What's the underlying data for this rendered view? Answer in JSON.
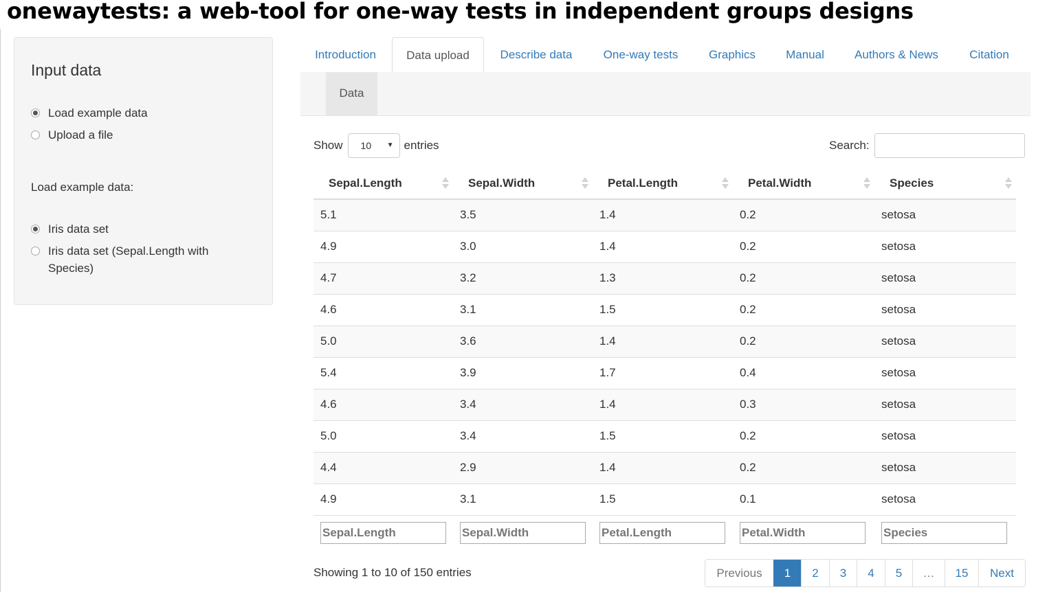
{
  "app": {
    "title": "onewaytests: a web-tool for one-way tests in independent groups designs"
  },
  "sidebar": {
    "heading": "Input data",
    "source_options": [
      {
        "label": "Load example data",
        "checked": true
      },
      {
        "label": "Upload a file",
        "checked": false
      }
    ],
    "example_label": "Load example data:",
    "example_options": [
      {
        "label": "Iris data set",
        "checked": true
      },
      {
        "label": "Iris data set (Sepal.Length with Species)",
        "checked": false
      }
    ]
  },
  "tabs": [
    {
      "label": "Introduction",
      "active": false
    },
    {
      "label": "Data upload",
      "active": true
    },
    {
      "label": "Describe data",
      "active": false
    },
    {
      "label": "One-way tests",
      "active": false
    },
    {
      "label": "Graphics",
      "active": false
    },
    {
      "label": "Manual",
      "active": false
    },
    {
      "label": "Authors & News",
      "active": false
    },
    {
      "label": "Citation",
      "active": false
    }
  ],
  "subtab": {
    "label": "Data"
  },
  "length_control": {
    "show_label": "Show",
    "selected": "10",
    "entries_label": "entries"
  },
  "search": {
    "label": "Search:",
    "value": ""
  },
  "table": {
    "columns": [
      "Sepal.Length",
      "Sepal.Width",
      "Petal.Length",
      "Petal.Width",
      "Species"
    ],
    "rows": [
      [
        "5.1",
        "3.5",
        "1.4",
        "0.2",
        "setosa"
      ],
      [
        "4.9",
        "3.0",
        "1.4",
        "0.2",
        "setosa"
      ],
      [
        "4.7",
        "3.2",
        "1.3",
        "0.2",
        "setosa"
      ],
      [
        "4.6",
        "3.1",
        "1.5",
        "0.2",
        "setosa"
      ],
      [
        "5.0",
        "3.6",
        "1.4",
        "0.2",
        "setosa"
      ],
      [
        "5.4",
        "3.9",
        "1.7",
        "0.4",
        "setosa"
      ],
      [
        "4.6",
        "3.4",
        "1.4",
        "0.3",
        "setosa"
      ],
      [
        "5.0",
        "3.4",
        "1.5",
        "0.2",
        "setosa"
      ],
      [
        "4.4",
        "2.9",
        "1.4",
        "0.2",
        "setosa"
      ],
      [
        "4.9",
        "3.1",
        "1.5",
        "0.1",
        "setosa"
      ]
    ],
    "filter_placeholders": [
      "Sepal.Length",
      "Sepal.Width",
      "Petal.Length",
      "Petal.Width",
      "Species"
    ]
  },
  "info": {
    "text": "Showing 1 to 10 of 150 entries"
  },
  "pagination": {
    "previous": "Previous",
    "pages": [
      "1",
      "2",
      "3",
      "4",
      "5",
      "…",
      "15"
    ],
    "current": "1",
    "next": "Next"
  },
  "colors": {
    "link": "#337ab7",
    "panel": "#f5f5f5",
    "stripe": "#f9f9f9"
  }
}
